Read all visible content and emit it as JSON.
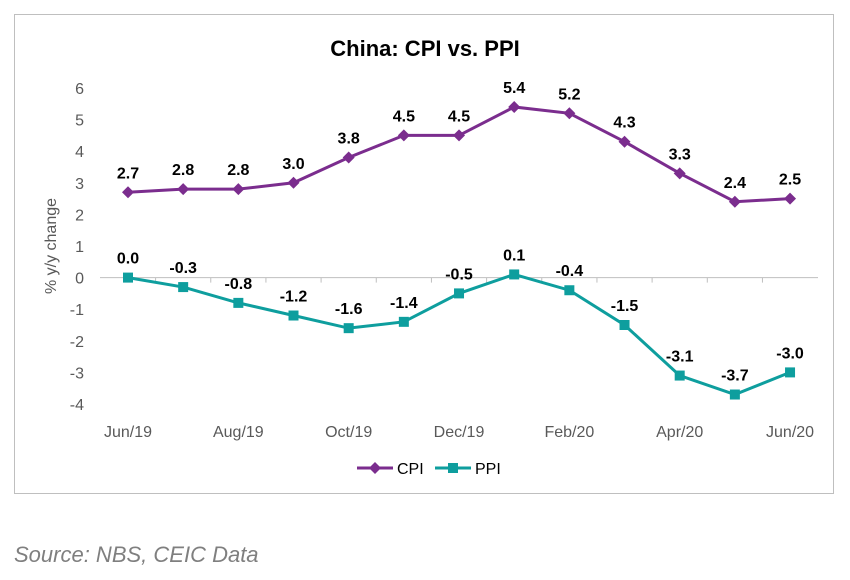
{
  "chart_data": {
    "type": "line",
    "title": "China: CPI vs. PPI",
    "ylabel": "% y/y change",
    "xlabel": "",
    "ylim": [
      -4,
      6
    ],
    "yticks": [
      6,
      5,
      4,
      3,
      2,
      1,
      0,
      -1,
      -2,
      -3,
      -4
    ],
    "categories": [
      "Jun/19",
      "Jul/19",
      "Aug/19",
      "Sep/19",
      "Oct/19",
      "Nov/19",
      "Dec/19",
      "Jan/20",
      "Feb/20",
      "Mar/20",
      "Apr/20",
      "May/20",
      "Jun/20"
    ],
    "xtick_labels": [
      "Jun/19",
      "",
      "Aug/19",
      "",
      "Oct/19",
      "",
      "Dec/19",
      "",
      "Feb/20",
      "",
      "Apr/20",
      "",
      "Jun/20"
    ],
    "grid": false,
    "legend": "bottom",
    "series": [
      {
        "name": "CPI",
        "color": "#7B2D8E",
        "marker": "diamond",
        "values": [
          2.7,
          2.8,
          2.8,
          3.0,
          3.8,
          4.5,
          4.5,
          5.4,
          5.2,
          4.3,
          3.3,
          2.4,
          2.5
        ],
        "labels": [
          "2.7",
          "2.8",
          "2.8",
          "3.0",
          "3.8",
          "4.5",
          "4.5",
          "5.4",
          "5.2",
          "4.3",
          "3.3",
          "2.4",
          "2.5"
        ]
      },
      {
        "name": "PPI",
        "color": "#0E9E9E",
        "marker": "square",
        "values": [
          0.0,
          -0.3,
          -0.8,
          -1.2,
          -1.6,
          -1.4,
          -0.5,
          0.1,
          -0.4,
          -1.5,
          -3.1,
          -3.7,
          -3.0
        ],
        "labels": [
          "0.0",
          "-0.3",
          "-0.8",
          "-1.2",
          "-1.6",
          "-1.4",
          "-0.5",
          "0.1",
          "-0.4",
          "-1.5",
          "-3.1",
          "-3.7",
          "-3.0"
        ]
      }
    ]
  },
  "source": "Source: NBS, CEIC Data"
}
